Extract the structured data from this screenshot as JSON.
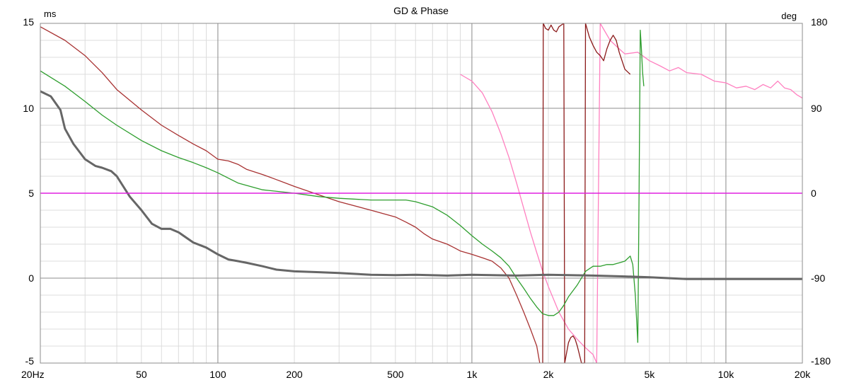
{
  "chart_data": {
    "type": "line",
    "title": "GD & Phase",
    "ylabel_left": "ms",
    "ylabel_right": "deg",
    "x_scale": "log",
    "xlim": [
      20,
      20000
    ],
    "ylim_left": [
      -5,
      15
    ],
    "ylim_right": [
      -180,
      180
    ],
    "grid": true,
    "x_ticks": [
      {
        "value": 20,
        "label": "20Hz"
      },
      {
        "value": 50,
        "label": "50"
      },
      {
        "value": 100,
        "label": "100"
      },
      {
        "value": 200,
        "label": "200"
      },
      {
        "value": 500,
        "label": "500"
      },
      {
        "value": 1000,
        "label": "1k"
      },
      {
        "value": 2000,
        "label": "2k"
      },
      {
        "value": 5000,
        "label": "5k"
      },
      {
        "value": 10000,
        "label": "10k"
      },
      {
        "value": 20000,
        "label": "20k"
      }
    ],
    "y_ticks_left": [
      {
        "value": 15,
        "label": "15"
      },
      {
        "value": 10,
        "label": "10"
      },
      {
        "value": 5,
        "label": "5"
      },
      {
        "value": 0,
        "label": "0"
      },
      {
        "value": -5,
        "label": "-5"
      }
    ],
    "y_ticks_right": [
      {
        "value": 180,
        "label": "180"
      },
      {
        "value": 90,
        "label": "90"
      },
      {
        "value": 0,
        "label": "0"
      },
      {
        "value": -90,
        "label": "-90"
      },
      {
        "value": -180,
        "label": "-180"
      }
    ],
    "series": [
      {
        "color": "#ff80c0",
        "width": 1.3,
        "axis": "left",
        "x": [
          900,
          1000,
          1100,
          1200,
          1300,
          1400,
          1500,
          1600,
          1700,
          1800,
          1900,
          2000,
          2200,
          2400,
          2600,
          2800,
          3000,
          3100
        ],
        "y": [
          12,
          11.6,
          10.9,
          9.8,
          8.5,
          7.1,
          5.6,
          4.1,
          2.7,
          1.5,
          0.4,
          -0.5,
          -2,
          -3,
          -3.6,
          -4.1,
          -4.5,
          -5
        ]
      },
      {
        "color": "#ff80c0",
        "width": 1.3,
        "axis": "left",
        "x": [
          3100,
          3200,
          3500,
          3800,
          4000,
          4500,
          5000,
          5500,
          6000,
          6500,
          7000,
          8000,
          9000,
          10000,
          11000,
          12000,
          13000,
          14000,
          15000,
          16000,
          17000,
          18000,
          19000,
          20000
        ],
        "y": [
          -5,
          15,
          14,
          13.5,
          13.2,
          13.3,
          12.8,
          12.5,
          12.2,
          12.4,
          12.1,
          12,
          11.6,
          11.5,
          11.2,
          11.3,
          11.1,
          11.4,
          11.2,
          11.6,
          11.2,
          11.1,
          10.8,
          10.6
        ]
      },
      {
        "color": "#a83232",
        "width": 1.3,
        "axis": "left",
        "x": [
          20,
          25,
          30,
          35,
          40,
          50,
          60,
          70,
          80,
          90,
          100,
          110,
          120,
          130,
          150,
          170,
          200,
          250,
          300,
          400,
          500,
          550,
          600,
          650,
          700,
          800,
          850,
          900,
          1000,
          1100,
          1200,
          1300,
          1400,
          1500,
          1600,
          1700,
          1800,
          1850
        ],
        "y": [
          14.8,
          14,
          13.1,
          12.1,
          11.1,
          9.9,
          9,
          8.4,
          7.9,
          7.5,
          7,
          6.9,
          6.7,
          6.4,
          6.1,
          5.8,
          5.4,
          4.9,
          4.5,
          4,
          3.6,
          3.3,
          3,
          2.6,
          2.3,
          2,
          1.8,
          1.6,
          1.4,
          1.2,
          1,
          0.6,
          0,
          -1,
          -2,
          -3,
          -4,
          -5
        ]
      },
      {
        "color": "#8b1a1a",
        "width": 1.3,
        "axis": "left",
        "x": [
          1900,
          1910,
          1950,
          2000,
          2050,
          2100,
          2150,
          2200,
          2250,
          2300,
          2320,
          2400,
          2450,
          2500,
          2550,
          2600,
          2650,
          2700,
          2750,
          2780,
          2800,
          2900,
          3000,
          3100,
          3200,
          3300,
          3400,
          3500,
          3600,
          3700,
          3800,
          3900,
          4000,
          4200
        ],
        "y": [
          -5,
          15,
          14.7,
          14.6,
          14.9,
          14.6,
          14.5,
          14.8,
          14.9,
          15,
          -5,
          -3.8,
          -3.5,
          -3.4,
          -3.6,
          -4,
          -4.5,
          -5,
          -5,
          -5,
          15,
          14.2,
          13.7,
          13.3,
          13.1,
          12.8,
          13.5,
          14,
          14.3,
          14,
          13.3,
          12.8,
          12.3,
          12
        ]
      },
      {
        "color": "#2e9e2e",
        "width": 1.3,
        "axis": "left",
        "x": [
          20,
          25,
          30,
          35,
          40,
          50,
          60,
          70,
          80,
          90,
          100,
          120,
          150,
          200,
          250,
          300,
          400,
          500,
          550,
          600,
          700,
          800,
          900,
          1000,
          1100,
          1200,
          1300,
          1400,
          1500,
          1600,
          1700,
          1800,
          1900,
          2000,
          2100,
          2200,
          2300,
          2400,
          2600,
          2800,
          3000,
          3200,
          3400,
          3600,
          3800,
          4000,
          4200,
          4300,
          4400,
          4500
        ],
        "y": [
          12.2,
          11.3,
          10.4,
          9.6,
          9,
          8.1,
          7.5,
          7.1,
          6.8,
          6.5,
          6.2,
          5.6,
          5.2,
          5,
          4.8,
          4.7,
          4.6,
          4.6,
          4.6,
          4.5,
          4.2,
          3.7,
          3.1,
          2.5,
          2,
          1.6,
          1.2,
          0.7,
          0,
          -0.6,
          -1.2,
          -1.7,
          -2.1,
          -2.2,
          -2.2,
          -2,
          -1.6,
          -1.1,
          -0.4,
          0.4,
          0.7,
          0.7,
          0.8,
          0.8,
          0.9,
          1,
          1.3,
          0.8,
          -1,
          -3.8
        ]
      },
      {
        "color": "#2e9e2e",
        "width": 1.3,
        "axis": "left",
        "x": [
          4500,
          4550,
          4600,
          4650,
          4700,
          4750
        ],
        "y": [
          -3.8,
          5,
          14.6,
          13.5,
          12.1,
          11.3
        ]
      },
      {
        "color": "#666666",
        "width": 3,
        "axis": "left",
        "x": [
          20,
          22,
          24,
          25,
          27,
          30,
          33,
          35,
          38,
          40,
          42,
          45,
          50,
          55,
          60,
          65,
          70,
          80,
          90,
          100,
          110,
          120,
          130,
          150,
          170,
          200,
          250,
          300,
          400,
          500,
          600,
          800,
          1000,
          1500,
          2000,
          3000,
          4000,
          5000,
          7000,
          10000,
          20000
        ],
        "y": [
          11,
          10.7,
          9.9,
          8.8,
          7.9,
          7,
          6.6,
          6.5,
          6.3,
          6,
          5.5,
          4.8,
          4,
          3.2,
          2.9,
          2.9,
          2.7,
          2.1,
          1.8,
          1.4,
          1.1,
          1,
          0.9,
          0.7,
          0.5,
          0.4,
          0.35,
          0.3,
          0.2,
          0.18,
          0.2,
          0.15,
          0.2,
          0.15,
          0.2,
          0.15,
          0.1,
          0.05,
          -0.05,
          -0.05,
          -0.05
        ]
      },
      {
        "color": "#e020e0",
        "width": 1.5,
        "axis": "right",
        "x": [
          20,
          20000
        ],
        "y": [
          0,
          0
        ]
      }
    ]
  }
}
